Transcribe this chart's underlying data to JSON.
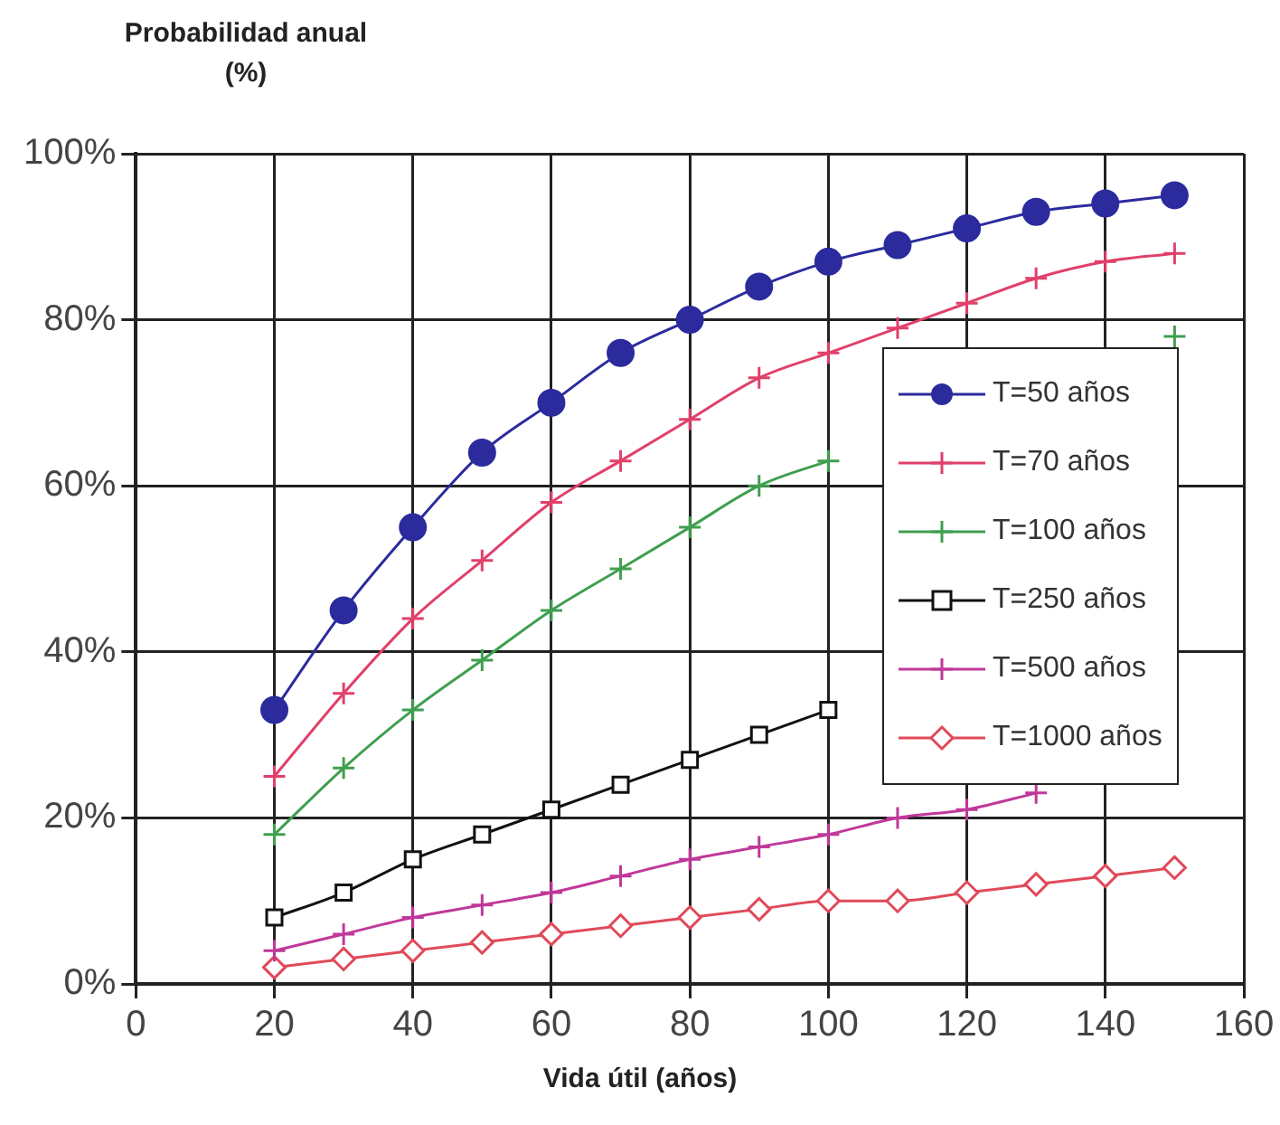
{
  "chart_data": {
    "type": "line",
    "ylabel": "Probabilidad anual (%)",
    "xlabel": "Vida útil (años)",
    "x": [
      20,
      30,
      40,
      50,
      60,
      70,
      80,
      90,
      100,
      110,
      120,
      130,
      140,
      150
    ],
    "series": [
      {
        "name": "T=50 años",
        "color": "#2b2b9e",
        "marker": "circle",
        "values": [
          33,
          45,
          55,
          64,
          70,
          76,
          80,
          84,
          87,
          89,
          91,
          93,
          94,
          95
        ]
      },
      {
        "name": "T=70 años",
        "color": "#e0406a",
        "marker": "cross",
        "values": [
          25,
          35,
          44,
          51,
          58,
          63,
          68,
          73,
          76,
          79,
          82,
          85,
          87,
          88
        ]
      },
      {
        "name": "T=100 años",
        "color": "#3f9f4f",
        "marker": "cross",
        "values": [
          18,
          26,
          33,
          39,
          45,
          50,
          55,
          60,
          63,
          null,
          null,
          null,
          null,
          78
        ]
      },
      {
        "name": "T=250 años",
        "color": "#111111",
        "marker": "square",
        "values": [
          8,
          11,
          15,
          18,
          21,
          24,
          27,
          30,
          33,
          null,
          null,
          null,
          null,
          null
        ]
      },
      {
        "name": "T=500 años",
        "color": "#c0389a",
        "marker": "cross",
        "values": [
          4,
          6,
          8,
          9.5,
          11,
          13,
          15,
          16.5,
          18,
          20,
          21,
          23,
          null,
          null
        ]
      },
      {
        "name": "T=1000 años",
        "color": "#e04a5a",
        "marker": "diamond",
        "values": [
          2,
          3,
          4,
          5,
          6,
          7,
          8,
          9,
          10,
          10,
          11,
          12,
          13,
          14
        ]
      }
    ],
    "xlim": [
      0,
      160
    ],
    "xticks": [
      0,
      20,
      40,
      60,
      80,
      100,
      120,
      140,
      160
    ],
    "ylim": [
      0,
      100
    ],
    "yticks": [
      {
        "value": 0,
        "label": "0%"
      },
      {
        "value": 20,
        "label": "20%"
      },
      {
        "value": 40,
        "label": "40%"
      },
      {
        "value": 60,
        "label": "60%"
      },
      {
        "value": 80,
        "label": "80%"
      },
      {
        "value": 100,
        "label": "100%"
      }
    ],
    "grid": true,
    "legend": "right",
    "line_style": "solid"
  }
}
